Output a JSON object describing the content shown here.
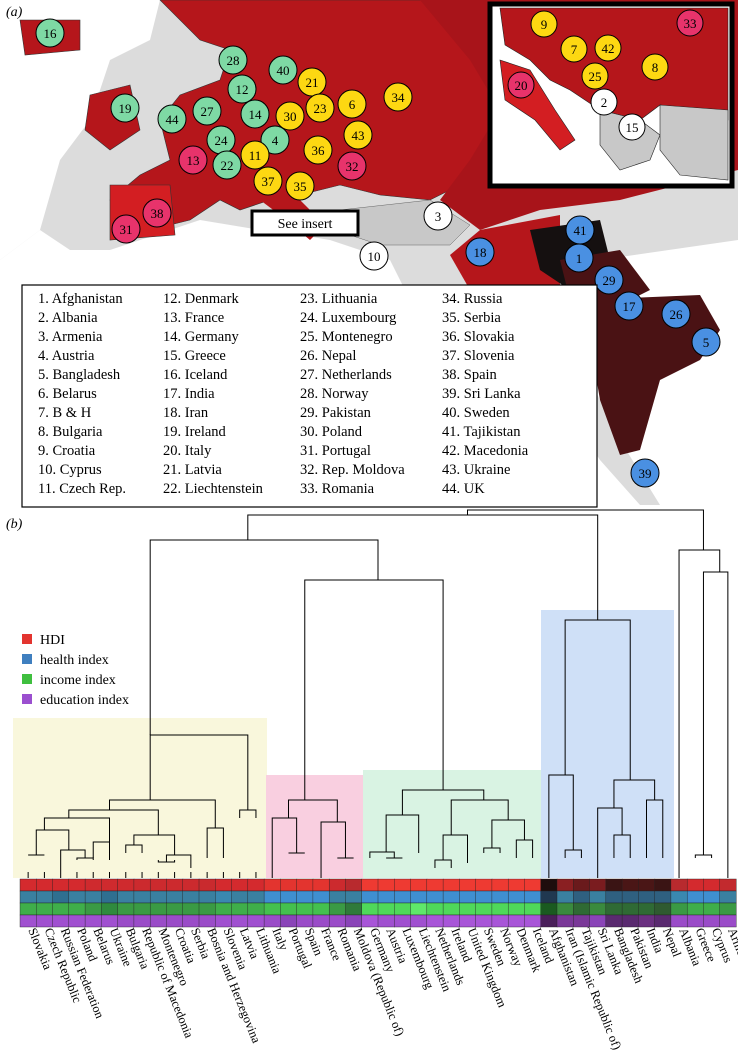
{
  "panel_a_label": "(a)",
  "panel_b_label": "(b)",
  "see_insert": "See insert",
  "colors": {
    "yellow_cluster": "#f9f7dc",
    "pink_cluster": "#f9cfe0",
    "green_cluster": "#d9f3e3",
    "blue_cluster": "#cfe0f7",
    "map_red": "#b5161b",
    "map_dark": "#4a1214",
    "map_grey": "#c8c8c8",
    "marker_green": "#7ed9a4",
    "marker_yellow": "#fdd812",
    "marker_pink": "#e8336b",
    "marker_blue": "#4a90e2",
    "marker_white": "#ffffff"
  },
  "country_key": [
    "1. Afghanistan",
    "2. Albania",
    "3. Armenia",
    "4. Austria",
    "5. Bangladesh",
    "6. Belarus",
    "7. B & H",
    "8. Bulgaria",
    "9. Croatia",
    "10. Cyprus",
    "11. Czech Rep.",
    "12. Denmark",
    "13. France",
    "14. Germany",
    "15. Greece",
    "16. Iceland",
    "17. India",
    "18. Iran",
    "19. Ireland",
    "20. Italy",
    "21. Latvia",
    "22. Liechtenstein",
    "23. Lithuania",
    "24. Luxembourg",
    "25. Montenegro",
    "26. Nepal",
    "27. Netherlands",
    "28. Norway",
    "29. Pakistan",
    "30. Poland",
    "31. Portugal",
    "32. Rep. Moldova",
    "33. Romania",
    "34. Russia",
    "35. Serbia",
    "36. Slovakia",
    "37. Slovenia",
    "38. Spain",
    "39. Sri Lanka",
    "40. Sweden",
    "41. Tajikistan",
    "42. Macedonia",
    "43. Ukraine",
    "44. UK"
  ],
  "map_markers": [
    {
      "n": "16",
      "c": "green"
    },
    {
      "n": "28",
      "c": "green"
    },
    {
      "n": "40",
      "c": "green"
    },
    {
      "n": "12",
      "c": "green"
    },
    {
      "n": "19",
      "c": "green"
    },
    {
      "n": "44",
      "c": "green"
    },
    {
      "n": "27",
      "c": "green"
    },
    {
      "n": "14",
      "c": "green"
    },
    {
      "n": "24",
      "c": "green"
    },
    {
      "n": "4",
      "c": "green"
    },
    {
      "n": "22",
      "c": "green"
    },
    {
      "n": "21",
      "c": "yellow"
    },
    {
      "n": "30",
      "c": "yellow"
    },
    {
      "n": "23",
      "c": "yellow"
    },
    {
      "n": "6",
      "c": "yellow"
    },
    {
      "n": "34",
      "c": "yellow"
    },
    {
      "n": "43",
      "c": "yellow"
    },
    {
      "n": "11",
      "c": "yellow"
    },
    {
      "n": "36",
      "c": "yellow"
    },
    {
      "n": "37",
      "c": "yellow"
    },
    {
      "n": "35",
      "c": "yellow"
    },
    {
      "n": "13",
      "c": "pink"
    },
    {
      "n": "32",
      "c": "pink"
    },
    {
      "n": "38",
      "c": "pink"
    },
    {
      "n": "31",
      "c": "pink"
    },
    {
      "n": "3",
      "c": "white"
    },
    {
      "n": "10",
      "c": "white"
    },
    {
      "n": "18",
      "c": "blue"
    },
    {
      "n": "41",
      "c": "blue"
    },
    {
      "n": "1",
      "c": "blue"
    },
    {
      "n": "29",
      "c": "blue"
    },
    {
      "n": "17",
      "c": "blue"
    },
    {
      "n": "26",
      "c": "blue"
    },
    {
      "n": "5",
      "c": "blue"
    },
    {
      "n": "39",
      "c": "blue"
    }
  ],
  "inset_markers": [
    {
      "n": "9",
      "c": "yellow"
    },
    {
      "n": "33",
      "c": "pink"
    },
    {
      "n": "7",
      "c": "yellow"
    },
    {
      "n": "42",
      "c": "yellow"
    },
    {
      "n": "8",
      "c": "yellow"
    },
    {
      "n": "20",
      "c": "pink"
    },
    {
      "n": "25",
      "c": "yellow"
    },
    {
      "n": "2",
      "c": "white"
    },
    {
      "n": "15",
      "c": "white"
    }
  ],
  "legend": [
    {
      "label": "HDI",
      "color": "#e3342f"
    },
    {
      "label": "health index",
      "color": "#3f7fbf"
    },
    {
      "label": "income index",
      "color": "#3fbf3f"
    },
    {
      "label": "education index",
      "color": "#9b4fcf"
    }
  ],
  "countries": [
    "Slovakia",
    "Czech Republic",
    "Russian Federation",
    "Poland",
    "Belarus",
    "Ukraine",
    "Bulgaria",
    "Republic of Macedonia",
    "Montenegro",
    "Croatia",
    "Serbia",
    "Bosnia and Herzegovina",
    "Slovenia",
    "Latvia",
    "Lithuania",
    "Italy",
    "Portugal",
    "Spain",
    "France",
    "Romania",
    "Moldova (Republic of)",
    "Germany",
    "Austria",
    "Luxembourg",
    "Liechtenstein",
    "Netherlands",
    "Ireland",
    "United Kingdom",
    "Sweden",
    "Norway",
    "Denmark",
    "Iceland",
    "Afghanistan",
    "Iran (Islamic Republic of)",
    "Tajikistan",
    "Sri Lanka",
    "Bangladesh",
    "Pakistan",
    "India",
    "Nepal",
    "Albania",
    "Greece",
    "Cyprus",
    "Armenia"
  ],
  "heatmap_rows": {
    "HDI": [
      "#d42a2e",
      "#d42a2e",
      "#d42a2e",
      "#d42a2e",
      "#cf2a2e",
      "#cf2a2e",
      "#cf2a2e",
      "#cc2a2e",
      "#cc2a2e",
      "#cc2a2e",
      "#cc2a2e",
      "#c92a2e",
      "#d42a2e",
      "#d42a2e",
      "#d42a2e",
      "#e3342f",
      "#e3342f",
      "#e3342f",
      "#e3342f",
      "#cc2a2e",
      "#b82a2e",
      "#ee3a32",
      "#ee3a32",
      "#ee3a32",
      "#ee3a32",
      "#ee3a32",
      "#ee3a32",
      "#ee3a32",
      "#ee3a32",
      "#ee3a32",
      "#ee3a32",
      "#ee3a32",
      "#1e0d0d",
      "#8a1f22",
      "#6a1a1c",
      "#7a1c1f",
      "#3a1414",
      "#4a1616",
      "#4a1616",
      "#3a1414",
      "#b82a2e",
      "#d42a2e",
      "#d42a2e",
      "#c22a2e"
    ],
    "health": [
      "#3a80a0",
      "#3a80a0",
      "#2f6f90",
      "#3a80a0",
      "#3a80a0",
      "#2f6f90",
      "#3a80a0",
      "#3a80a0",
      "#3a80a0",
      "#3a80a0",
      "#3a80a0",
      "#3a80a0",
      "#3a88b0",
      "#3a80a0",
      "#3a80a0",
      "#3f8fd0",
      "#3f8fd0",
      "#3f8fd0",
      "#3f8fd0",
      "#3a80a0",
      "#3a80a0",
      "#3f8fd0",
      "#3f8fd0",
      "#3f8fd0",
      "#3f8fd0",
      "#3f8fd0",
      "#3f8fd0",
      "#3f8fd0",
      "#3f8fd0",
      "#3f8fd0",
      "#3f8fd0",
      "#3f8fd0",
      "#203850",
      "#3a80a0",
      "#2f6080",
      "#3a80a0",
      "#2f6080",
      "#2f6080",
      "#2f6080",
      "#2f6080",
      "#3a88b0",
      "#3f8fd0",
      "#3f8fd0",
      "#3a80a0"
    ],
    "income": [
      "#3fae4a",
      "#3fae4a",
      "#3fae4a",
      "#3fae4a",
      "#3a9a44",
      "#2f8a3e",
      "#3a9a44",
      "#3a9a44",
      "#3a9a44",
      "#3a9a44",
      "#3a9a44",
      "#3a9a44",
      "#3fae4a",
      "#3fae4a",
      "#3fae4a",
      "#44c04e",
      "#44c04e",
      "#44c04e",
      "#44c04e",
      "#3a9a44",
      "#2f7a3a",
      "#4fd85a",
      "#4fd85a",
      "#4fd85a",
      "#5fe86a",
      "#4fd85a",
      "#4fd85a",
      "#4fd85a",
      "#4fd85a",
      "#4fd85a",
      "#4fd85a",
      "#4fd85a",
      "#1a5a20",
      "#3a8a3e",
      "#2f6a34",
      "#3a8a3e",
      "#2f6a34",
      "#2f6a34",
      "#2f6a34",
      "#2f5a30",
      "#3a9a44",
      "#3fae4a",
      "#3fae4a",
      "#3a9a44"
    ],
    "education": [
      "#a050d0",
      "#a050d0",
      "#a050d0",
      "#a050d0",
      "#a050d0",
      "#a050d0",
      "#9a4cc8",
      "#9a4cc8",
      "#9a4cc8",
      "#9a4cc8",
      "#9a4cc8",
      "#9a4cc8",
      "#a050d0",
      "#a050d0",
      "#a050d0",
      "#9a4cc8",
      "#8a44b8",
      "#9a4cc8",
      "#9a4cc8",
      "#9a4cc8",
      "#8a44b8",
      "#a855d8",
      "#a050d0",
      "#a050d0",
      "#a050d0",
      "#a855d8",
      "#a855d8",
      "#a855d8",
      "#a855d8",
      "#a855d8",
      "#a855d8",
      "#a855d8",
      "#4a1f5a",
      "#7a3898",
      "#7a3898",
      "#8a44b8",
      "#5a2a70",
      "#5a2a70",
      "#6a3080",
      "#5a2a70",
      "#9a4cc8",
      "#9a4cc8",
      "#9a4cc8",
      "#9a4cc8"
    ]
  }
}
